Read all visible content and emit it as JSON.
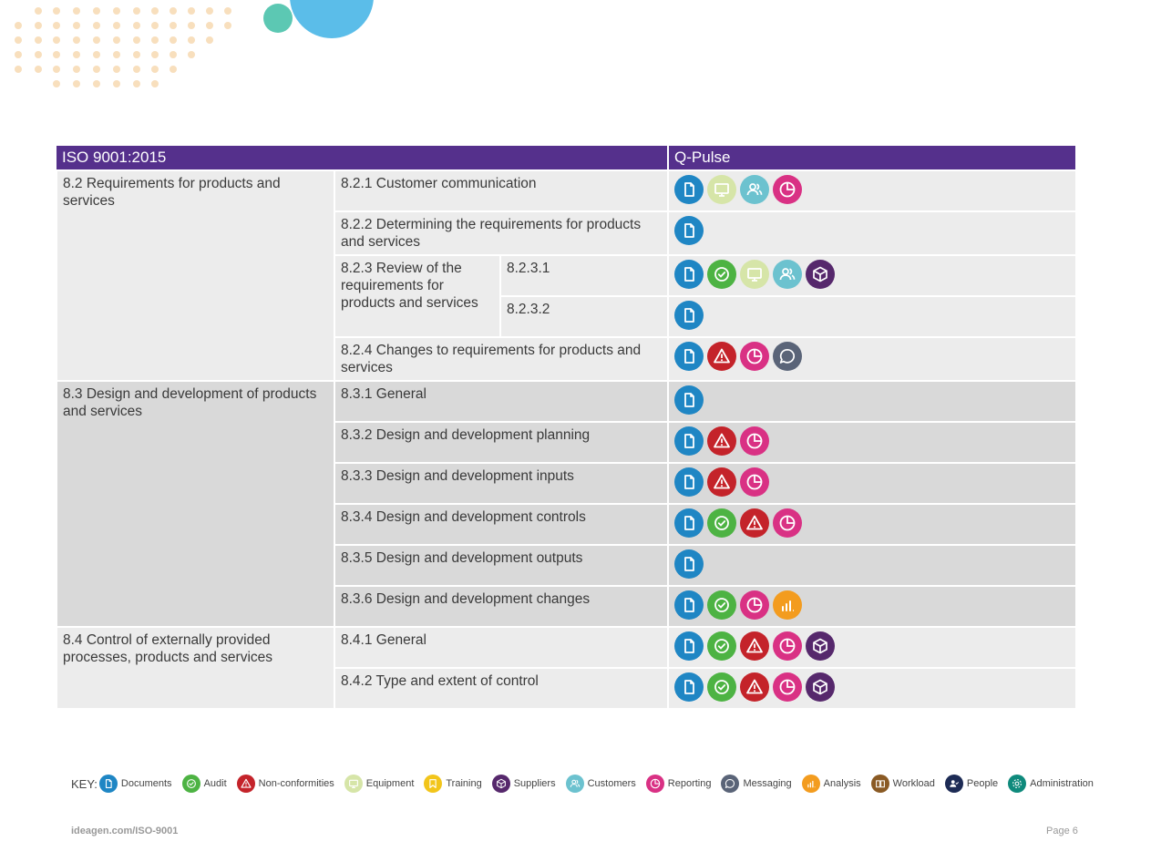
{
  "colors": {
    "header_bg": "#55308c",
    "documents": "#1f86c4",
    "audit": "#4db343",
    "nonconformities": "#c4232a",
    "equipment": "#d6e5a8",
    "training": "#f2c51b",
    "suppliers": "#56286c",
    "customers": "#6cc2cf",
    "reporting": "#d93184",
    "messaging": "#5a6478",
    "analysis": "#f39c1f",
    "workload": "#8a5a24",
    "people": "#1d2b55",
    "administration": "#0f8a7c"
  },
  "table": {
    "header_left": "ISO 9001:2015",
    "header_right": "Q-Pulse",
    "groups": [
      {
        "title": "8.2 Requirements for products and services",
        "rows": [
          {
            "clause": "8.2.1 Customer communication",
            "icons": [
              "documents",
              "equipment",
              "customers",
              "reporting"
            ]
          },
          {
            "clause": "8.2.2 Determining the requirements for products and services",
            "icons": [
              "documents"
            ]
          },
          {
            "clause": "8.2.3 Review of the requirements for products and services",
            "sub": "8.2.3.1",
            "icons": [
              "documents",
              "audit",
              "equipment",
              "customers",
              "suppliers"
            ]
          },
          {
            "sub": "8.2.3.2",
            "icons": [
              "documents"
            ]
          },
          {
            "clause": "8.2.4 Changes to requirements for products and services",
            "icons": [
              "documents",
              "nonconformities",
              "reporting",
              "messaging"
            ]
          }
        ]
      },
      {
        "title": "8.3 Design and development of products and services",
        "rows": [
          {
            "clause": "8.3.1 General",
            "icons": [
              "documents"
            ]
          },
          {
            "clause": "8.3.2 Design and development planning",
            "icons": [
              "documents",
              "nonconformities",
              "reporting"
            ]
          },
          {
            "clause": "8.3.3 Design and development inputs",
            "icons": [
              "documents",
              "nonconformities",
              "reporting"
            ]
          },
          {
            "clause": "8.3.4 Design and development controls",
            "icons": [
              "documents",
              "audit",
              "nonconformities",
              "reporting"
            ]
          },
          {
            "clause": "8.3.5 Design and development outputs",
            "icons": [
              "documents"
            ]
          },
          {
            "clause": "8.3.6 Design and development changes",
            "icons": [
              "documents",
              "audit",
              "reporting",
              "analysis"
            ]
          }
        ]
      },
      {
        "title": "8.4 Control of externally provided processes, products and services",
        "rows": [
          {
            "clause": "8.4.1 General",
            "icons": [
              "documents",
              "audit",
              "nonconformities",
              "reporting",
              "suppliers"
            ]
          },
          {
            "clause": "8.4.2 Type and extent of control",
            "icons": [
              "documents",
              "audit",
              "nonconformities",
              "reporting",
              "suppliers"
            ]
          }
        ]
      }
    ]
  },
  "key": {
    "label": "KEY:",
    "items": [
      {
        "id": "documents",
        "label": "Documents"
      },
      {
        "id": "audit",
        "label": "Audit"
      },
      {
        "id": "nonconformities",
        "label": "Non-conformities"
      },
      {
        "id": "equipment",
        "label": "Equipment"
      },
      {
        "id": "training",
        "label": "Training"
      },
      {
        "id": "suppliers",
        "label": "Suppliers"
      },
      {
        "id": "customers",
        "label": "Customers"
      },
      {
        "id": "reporting",
        "label": "Reporting"
      },
      {
        "id": "messaging",
        "label": "Messaging"
      },
      {
        "id": "analysis",
        "label": "Analysis"
      },
      {
        "id": "workload",
        "label": "Workload"
      },
      {
        "id": "people",
        "label": "People"
      },
      {
        "id": "administration",
        "label": "Administration"
      }
    ]
  },
  "footer": {
    "url": "ideagen.com/ISO-9001",
    "page": "Page 6"
  }
}
